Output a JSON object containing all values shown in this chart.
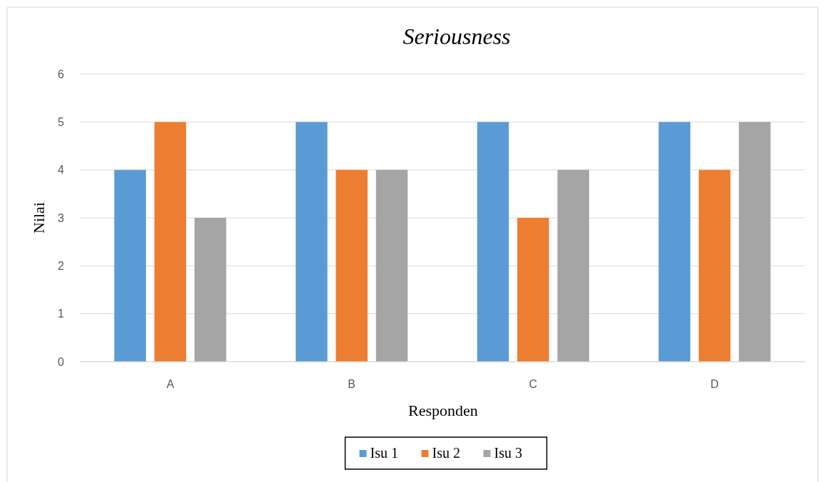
{
  "chart_data": {
    "type": "bar",
    "title": "Seriousness",
    "xlabel": "Responden",
    "ylabel": "Nilai",
    "categories": [
      "A",
      "B",
      "C",
      "D"
    ],
    "series": [
      {
        "name": "Isu 1",
        "color": "#5b9bd5",
        "values": [
          4,
          5,
          5,
          5
        ]
      },
      {
        "name": "Isu 2",
        "color": "#ed7d31",
        "values": [
          5,
          4,
          3,
          4
        ]
      },
      {
        "name": "Isu 3",
        "color": "#a5a5a5",
        "values": [
          3,
          4,
          4,
          5
        ]
      }
    ],
    "ylim": [
      0,
      6
    ],
    "yticks": [
      0,
      1,
      2,
      3,
      4,
      5,
      6
    ],
    "grid": "y",
    "legend": "bottom"
  }
}
